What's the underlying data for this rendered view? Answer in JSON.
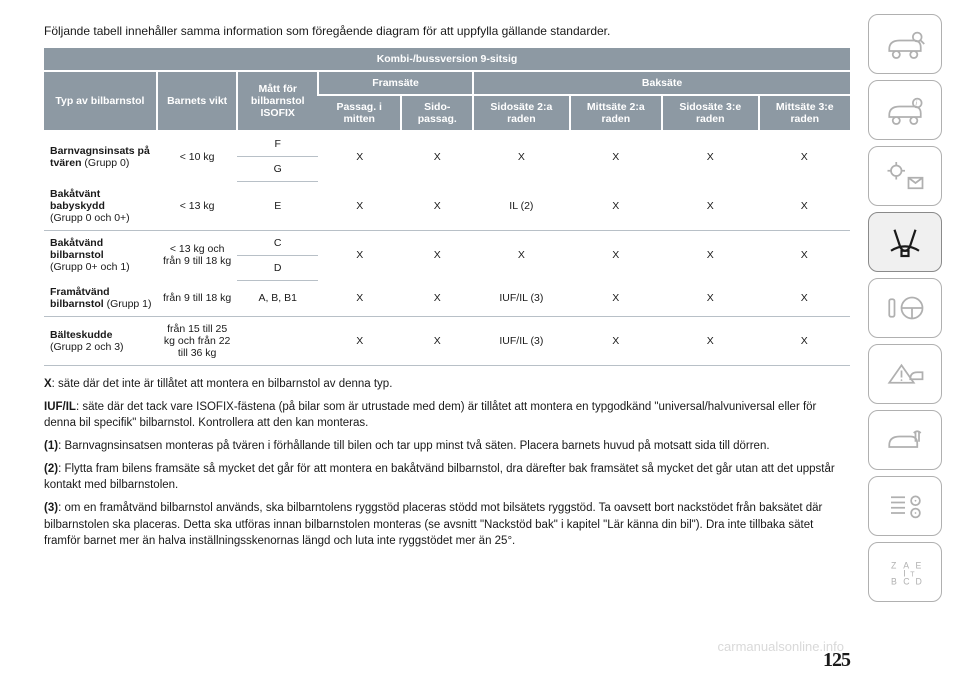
{
  "intro": "Följande tabell innehåller samma information som föregående diagram för att uppfylla gällande standarder.",
  "table_title": "Kombi-/bussversion 9-sitsig",
  "headers": {
    "col_type": "Typ av bilbarnstol",
    "col_weight": "Barnets vikt",
    "col_isofix": "Mått för bilbarnstol ISOFIX",
    "front": "Framsäte",
    "rear": "Baksäte",
    "front_center": "Passag. i mitten",
    "front_side": "Sido-passag.",
    "rear2_side": "Sidosäte 2:a raden",
    "rear2_mid": "Mittsäte 2:a raden",
    "rear3_side": "Sidosäte 3:e raden",
    "rear3_mid": "Mittsäte 3:e raden"
  },
  "rows": [
    {
      "type_bold": "Barnvagnsinsats på tvären",
      "type_rest": " (Grupp 0)",
      "weight": "< 10 kg",
      "isofix_split": [
        "F",
        "G"
      ],
      "isofix_single": "",
      "cells": [
        "X",
        "X",
        "X",
        "X",
        "X",
        "X"
      ]
    },
    {
      "type_bold": "Bakåtvänt babyskydd",
      "type_rest": "\n(Grupp 0 och 0+)",
      "weight": "< 13 kg",
      "isofix_split": null,
      "isofix_single": "E",
      "cells": [
        "X",
        "X",
        "IL (2)",
        "X",
        "X",
        "X"
      ]
    },
    {
      "type_bold": "Bakåtvänd bilbarnstol",
      "type_rest": "\n(Grupp 0+ och 1)",
      "weight": "< 13 kg och från 9 till 18 kg",
      "isofix_split": [
        "C",
        "D"
      ],
      "isofix_single": "",
      "cells": [
        "X",
        "X",
        "X",
        "X",
        "X",
        "X"
      ]
    },
    {
      "type_bold": "Framåtvänd bilbarnstol",
      "type_rest": " (Grupp 1)",
      "weight": "från 9 till 18 kg",
      "isofix_split": null,
      "isofix_single": "A, B, B1",
      "cells": [
        "X",
        "X",
        "IUF/IL (3)",
        "X",
        "X",
        "X"
      ]
    },
    {
      "type_bold": "Bälteskudde",
      "type_rest": "\n(Grupp 2 och 3)",
      "weight": "från 15 till 25 kg och från 22 till 36 kg",
      "isofix_split": null,
      "isofix_single": "",
      "cells": [
        "X",
        "X",
        "IUF/IL (3)",
        "X",
        "X",
        "X"
      ]
    }
  ],
  "notes": {
    "n_x_b": "X",
    "n_x": ": säte där det inte är tillåtet att montera en bilbarnstol av denna typ.",
    "n_iuf_b": "IUF/IL",
    "n_iuf": ": säte där det tack vare ISOFIX-fästena (på bilar som är utrustade med dem) är tillåtet att montera en typgodkänd \"universal/halvuniversal eller för denna bil specifik\" bilbarnstol. Kontrollera att den kan monteras.",
    "n_1_b": "(1)",
    "n_1": ": Barnvagnsinsatsen monteras på tvären i förhållande till bilen och tar upp minst två säten. Placera barnets huvud på motsatt sida till dörren.",
    "n_2_b": "(2)",
    "n_2": ": Flytta fram bilens framsäte så mycket det går för att montera en bakåtvänd bilbarnstol, dra därefter bak framsätet så mycket det går utan att det uppstår kontakt med bilbarnstolen.",
    "n_3_b": "(3)",
    "n_3": ": om en framåtvänd bilbarnstol används, ska bilbarntolens ryggstöd placeras stödd mot bilsätets ryggstöd. Ta oavsett bort nackstödet från baksätet där bilbarnstolen ska placeras. Detta ska utföras innan bilbarnstolen monteras (se avsnitt \"Nackstöd bak\" i kapitel \"Lär känna din bil\"). Dra inte tillbaka sätet framför barnet mer än halva inställningsskenornas längd och luta inte ryggstödet mer än 25°."
  },
  "page_num": "125",
  "watermark": "carmanualsonline.info"
}
